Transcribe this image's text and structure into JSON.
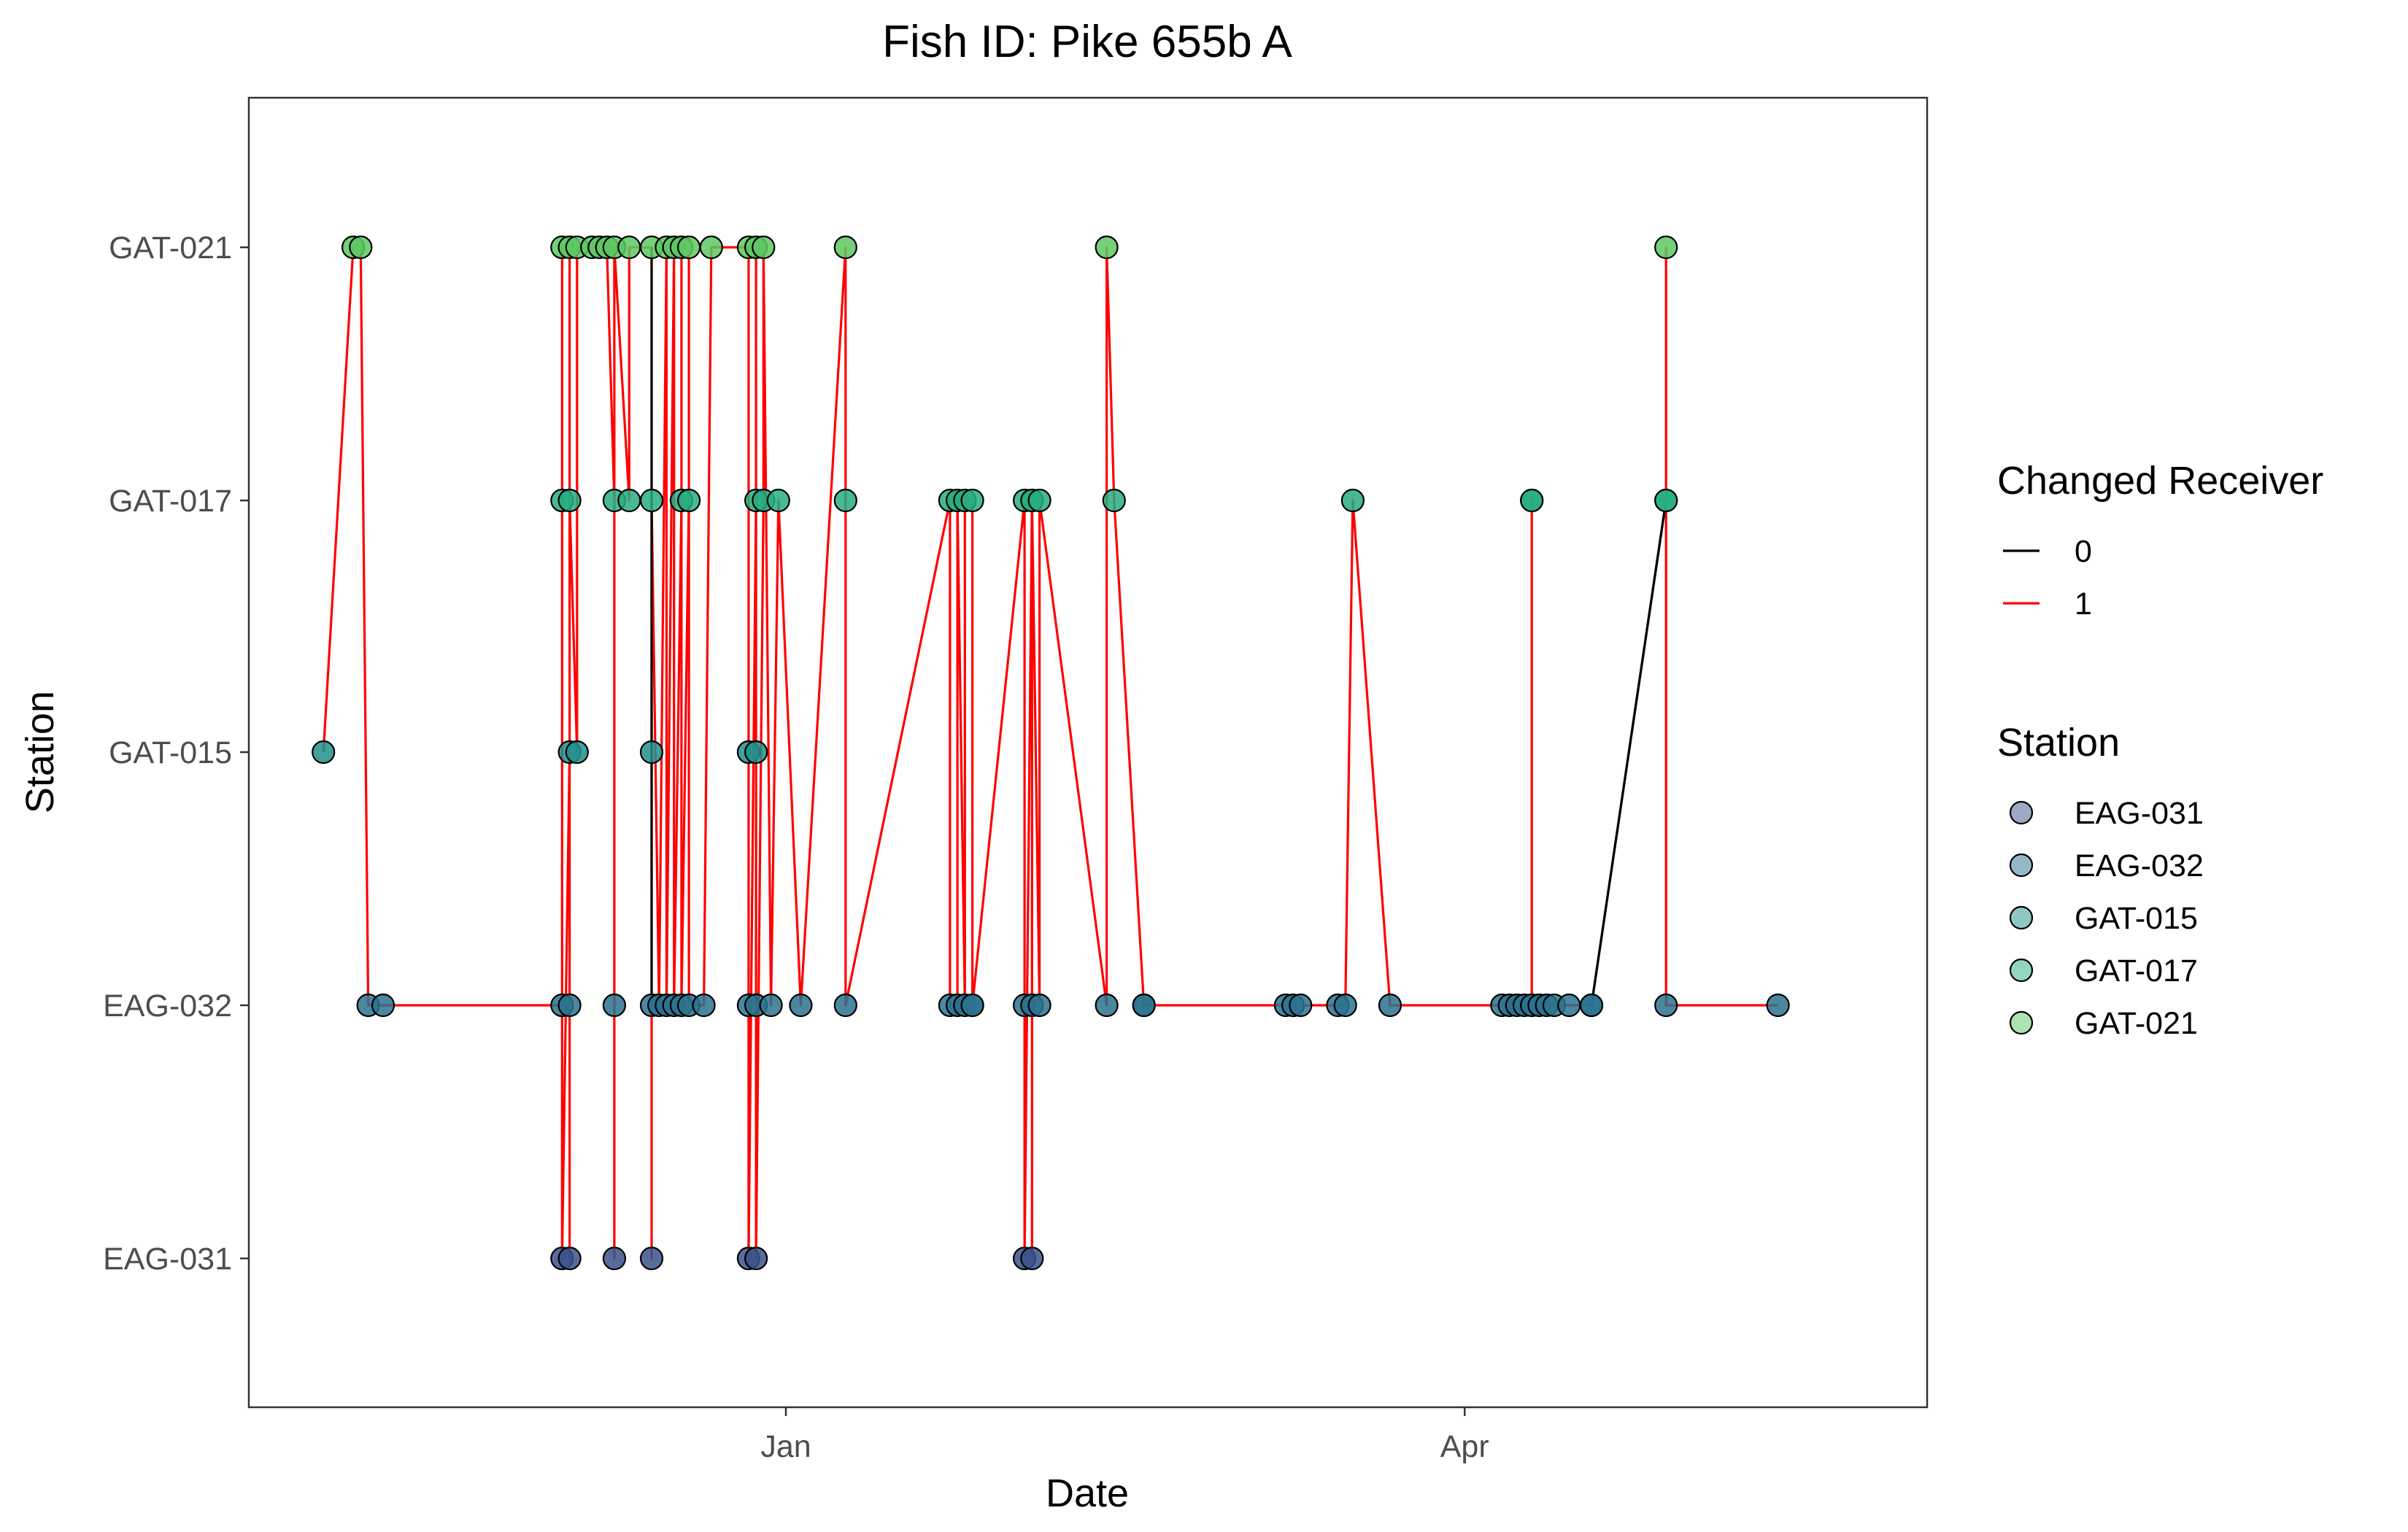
{
  "chart_data": {
    "type": "scatter",
    "title": "Fish ID: Pike 655b A",
    "xlabel": "Date",
    "ylabel": "Station",
    "x_ticks": [
      "Jan",
      "Apr"
    ],
    "y_categories": [
      "EAG-031",
      "EAG-032",
      "GAT-015",
      "GAT-017",
      "GAT-021"
    ],
    "xlim": [
      "2023-10-21",
      "2024-06-02"
    ],
    "grid": false,
    "legend_position": "right",
    "legend_line": {
      "title": "Changed Receiver",
      "entries": [
        {
          "label": "0",
          "color": "#000000"
        },
        {
          "label": "1",
          "color": "#ff0000"
        }
      ]
    },
    "legend_fill": {
      "title": "Station",
      "entries": [
        {
          "label": "EAG-031",
          "color": "#3b528b"
        },
        {
          "label": "EAG-032",
          "color": "#2c728e"
        },
        {
          "label": "GAT-015",
          "color": "#21908c"
        },
        {
          "label": "GAT-017",
          "color": "#27ad81"
        },
        {
          "label": "GAT-021",
          "color": "#5dc863"
        }
      ]
    },
    "detections": [
      {
        "x": "2023-10-31",
        "station": "GAT-015"
      },
      {
        "x": "2023-11-04",
        "station": "GAT-021"
      },
      {
        "x": "2023-11-05",
        "station": "GAT-021"
      },
      {
        "x": "2023-11-06",
        "station": "EAG-032"
      },
      {
        "x": "2023-11-08",
        "station": "EAG-032"
      },
      {
        "x": "2023-12-02",
        "station": "EAG-032"
      },
      {
        "x": "2023-12-02",
        "station": "GAT-017"
      },
      {
        "x": "2023-12-02",
        "station": "GAT-021"
      },
      {
        "x": "2023-12-02",
        "station": "EAG-031"
      },
      {
        "x": "2023-12-03",
        "station": "GAT-015"
      },
      {
        "x": "2023-12-03",
        "station": "EAG-032"
      },
      {
        "x": "2023-12-03",
        "station": "EAG-031"
      },
      {
        "x": "2023-12-03",
        "station": "GAT-021"
      },
      {
        "x": "2023-12-03",
        "station": "GAT-017"
      },
      {
        "x": "2023-12-04",
        "station": "GAT-015"
      },
      {
        "x": "2023-12-04",
        "station": "GAT-021"
      },
      {
        "x": "2023-12-06",
        "station": "GAT-021"
      },
      {
        "x": "2023-12-07",
        "station": "GAT-021"
      },
      {
        "x": "2023-12-08",
        "station": "GAT-021"
      },
      {
        "x": "2023-12-09",
        "station": "GAT-017"
      },
      {
        "x": "2023-12-09",
        "station": "EAG-032"
      },
      {
        "x": "2023-12-09",
        "station": "EAG-031"
      },
      {
        "x": "2023-12-09",
        "station": "GAT-021"
      },
      {
        "x": "2023-12-11",
        "station": "GAT-017"
      },
      {
        "x": "2023-12-11",
        "station": "GAT-021"
      },
      {
        "x": "2023-12-14",
        "station": "GAT-021"
      },
      {
        "x": "2023-12-14",
        "station": "GAT-015"
      },
      {
        "x": "2023-12-14",
        "station": "EAG-032"
      },
      {
        "x": "2023-12-14",
        "station": "EAG-031"
      },
      {
        "x": "2023-12-14",
        "station": "GAT-017"
      },
      {
        "x": "2023-12-15",
        "station": "EAG-032"
      },
      {
        "x": "2023-12-16",
        "station": "GAT-021"
      },
      {
        "x": "2023-12-16",
        "station": "EAG-032"
      },
      {
        "x": "2023-12-17",
        "station": "GAT-021"
      },
      {
        "x": "2023-12-17",
        "station": "EAG-032"
      },
      {
        "x": "2023-12-18",
        "station": "GAT-017"
      },
      {
        "x": "2023-12-18",
        "station": "GAT-021"
      },
      {
        "x": "2023-12-18",
        "station": "EAG-032"
      },
      {
        "x": "2023-12-19",
        "station": "GAT-017"
      },
      {
        "x": "2023-12-19",
        "station": "GAT-021"
      },
      {
        "x": "2023-12-19",
        "station": "EAG-032"
      },
      {
        "x": "2023-12-21",
        "station": "EAG-032"
      },
      {
        "x": "2023-12-22",
        "station": "GAT-021"
      },
      {
        "x": "2023-12-27",
        "station": "GAT-021"
      },
      {
        "x": "2023-12-27",
        "station": "GAT-015"
      },
      {
        "x": "2023-12-27",
        "station": "EAG-032"
      },
      {
        "x": "2023-12-27",
        "station": "EAG-031"
      },
      {
        "x": "2023-12-28",
        "station": "GAT-017"
      },
      {
        "x": "2023-12-28",
        "station": "GAT-021"
      },
      {
        "x": "2023-12-28",
        "station": "GAT-015"
      },
      {
        "x": "2023-12-28",
        "station": "EAG-032"
      },
      {
        "x": "2023-12-28",
        "station": "EAG-031"
      },
      {
        "x": "2023-12-29",
        "station": "GAT-017"
      },
      {
        "x": "2023-12-29",
        "station": "GAT-021"
      },
      {
        "x": "2023-12-30",
        "station": "EAG-032"
      },
      {
        "x": "2023-12-31",
        "station": "GAT-017"
      },
      {
        "x": "2024-01-03",
        "station": "EAG-032"
      },
      {
        "x": "2024-01-09",
        "station": "GAT-021"
      },
      {
        "x": "2024-01-09",
        "station": "GAT-017"
      },
      {
        "x": "2024-01-09",
        "station": "EAG-032"
      },
      {
        "x": "2024-01-23",
        "station": "GAT-017"
      },
      {
        "x": "2024-01-23",
        "station": "EAG-032"
      },
      {
        "x": "2024-01-24",
        "station": "EAG-032"
      },
      {
        "x": "2024-01-24",
        "station": "GAT-017"
      },
      {
        "x": "2024-01-25",
        "station": "EAG-032"
      },
      {
        "x": "2024-01-25",
        "station": "GAT-017"
      },
      {
        "x": "2024-01-26",
        "station": "GAT-017"
      },
      {
        "x": "2024-01-26",
        "station": "EAG-032"
      },
      {
        "x": "2024-01-26",
        "station": "EAG-032"
      },
      {
        "x": "2024-02-02",
        "station": "GAT-017"
      },
      {
        "x": "2024-02-02",
        "station": "EAG-032"
      },
      {
        "x": "2024-02-02",
        "station": "EAG-031"
      },
      {
        "x": "2024-02-03",
        "station": "GAT-017"
      },
      {
        "x": "2024-02-03",
        "station": "EAG-032"
      },
      {
        "x": "2024-02-03",
        "station": "EAG-031"
      },
      {
        "x": "2024-02-03",
        "station": "GAT-017"
      },
      {
        "x": "2024-02-04",
        "station": "EAG-032"
      },
      {
        "x": "2024-02-04",
        "station": "GAT-017"
      },
      {
        "x": "2024-02-13",
        "station": "EAG-032"
      },
      {
        "x": "2024-02-13",
        "station": "GAT-021"
      },
      {
        "x": "2024-02-14",
        "station": "GAT-017"
      },
      {
        "x": "2024-02-18",
        "station": "EAG-032"
      },
      {
        "x": "2024-02-18",
        "station": "EAG-032"
      },
      {
        "x": "2024-03-08",
        "station": "EAG-032"
      },
      {
        "x": "2024-03-09",
        "station": "EAG-032"
      },
      {
        "x": "2024-03-10",
        "station": "EAG-032"
      },
      {
        "x": "2024-03-15",
        "station": "EAG-032"
      },
      {
        "x": "2024-03-16",
        "station": "EAG-032"
      },
      {
        "x": "2024-03-17",
        "station": "GAT-017"
      },
      {
        "x": "2024-03-22",
        "station": "EAG-032"
      },
      {
        "x": "2024-04-06",
        "station": "EAG-032"
      },
      {
        "x": "2024-04-07",
        "station": "EAG-032"
      },
      {
        "x": "2024-04-08",
        "station": "EAG-032"
      },
      {
        "x": "2024-04-09",
        "station": "EAG-032"
      },
      {
        "x": "2024-04-10",
        "station": "EAG-032"
      },
      {
        "x": "2024-04-10",
        "station": "GAT-017"
      },
      {
        "x": "2024-04-10",
        "station": "GAT-017"
      },
      {
        "x": "2024-04-10",
        "station": "EAG-032"
      },
      {
        "x": "2024-04-11",
        "station": "EAG-032"
      },
      {
        "x": "2024-04-12",
        "station": "EAG-032"
      },
      {
        "x": "2024-04-13",
        "station": "EAG-032"
      },
      {
        "x": "2024-04-15",
        "station": "EAG-032"
      },
      {
        "x": "2024-04-18",
        "station": "EAG-032"
      },
      {
        "x": "2024-04-18",
        "station": "EAG-032"
      },
      {
        "x": "2024-04-28",
        "station": "GAT-017"
      },
      {
        "x": "2024-04-28",
        "station": "GAT-021"
      },
      {
        "x": "2024-04-28",
        "station": "GAT-017"
      },
      {
        "x": "2024-04-28",
        "station": "EAG-032"
      },
      {
        "x": "2024-05-13",
        "station": "EAG-032"
      }
    ],
    "black_segments": [
      [
        [
          "2023-12-14",
          "EAG-032"
        ],
        [
          "2023-12-14",
          "GAT-021"
        ]
      ],
      [
        [
          "2024-04-18",
          "EAG-032"
        ],
        [
          "2024-04-28",
          "GAT-017"
        ]
      ]
    ]
  }
}
